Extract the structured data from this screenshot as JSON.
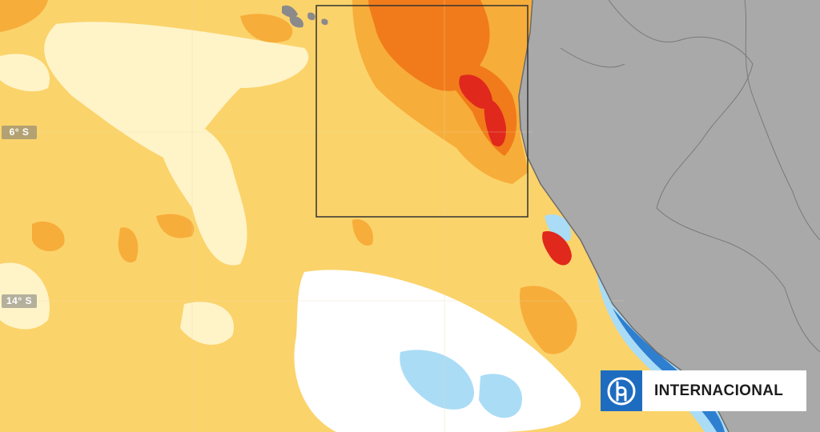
{
  "map": {
    "lat_labels": [
      "6° S",
      "14° S"
    ],
    "colors": {
      "land": "#a9a9a9",
      "anomaly_base": "#fbd36b",
      "anomaly_light": "#fff4c8",
      "anomaly_warm": "#f7ad3a",
      "anomaly_hot": "#f17b1a",
      "anomaly_extreme": "#e0281d",
      "anomaly_cool": "#aadcf6",
      "anomaly_cold": "#2f7fd0"
    }
  },
  "badge": {
    "logo_icon": "biobio-logo-icon",
    "label": "INTERNACIONAL",
    "logo_color": "#1e6cc0"
  }
}
